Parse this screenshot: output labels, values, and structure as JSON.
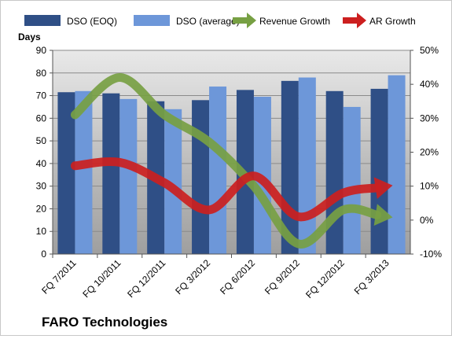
{
  "chart_data": {
    "type": "bar",
    "company": "FARO Technologies",
    "ylabel_left": "Days",
    "categories": [
      "FQ 7/2011",
      "FQ 10/2011",
      "FQ 12/2011",
      "FQ 3/2012",
      "FQ 6/2012",
      "FQ 9/2012",
      "FQ 12/2012",
      "FQ 3/2013"
    ],
    "series": [
      {
        "name": "DSO (EOQ)",
        "type": "bar",
        "axis": "left",
        "color": "#2f4f86",
        "values": [
          71.5,
          71,
          67.5,
          68,
          72.5,
          76.5,
          72,
          73
        ]
      },
      {
        "name": "DSO (average)",
        "type": "bar",
        "axis": "left",
        "color": "#6d97d9",
        "values": [
          72,
          68.5,
          64,
          74,
          69.5,
          78,
          65,
          79
        ]
      },
      {
        "name": "Revenue Growth",
        "type": "line",
        "axis": "right",
        "color": "#77a043",
        "values": [
          31,
          42,
          31,
          23,
          10,
          -7,
          3,
          1
        ]
      },
      {
        "name": "AR Growth",
        "type": "line",
        "axis": "right",
        "color": "#cc1f1f",
        "values": [
          16,
          17,
          11,
          3,
          13,
          1,
          8,
          10
        ]
      }
    ],
    "ylim_left": [
      0,
      90
    ],
    "yticks_left": [
      0,
      10,
      20,
      30,
      40,
      50,
      60,
      70,
      80,
      90
    ],
    "ylim_right": [
      -10,
      50
    ],
    "yticks_right": [
      "-10%",
      "0%",
      "10%",
      "20%",
      "30%",
      "40%",
      "50%"
    ],
    "grid": true,
    "legend_position": "top"
  }
}
